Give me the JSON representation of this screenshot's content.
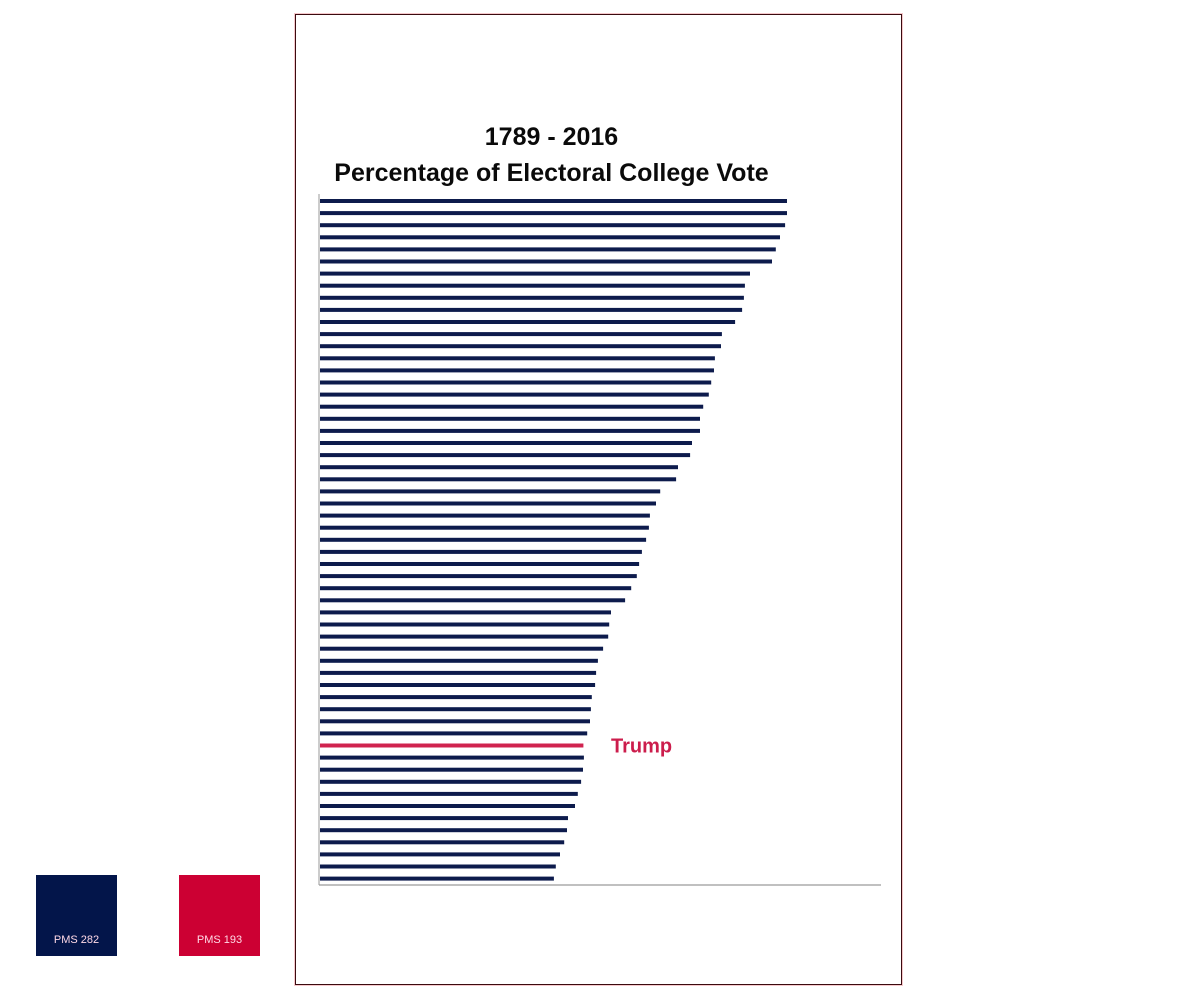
{
  "chart_data": {
    "type": "bar",
    "orientation": "horizontal",
    "title": "1789 - 2016",
    "subtitle": "Percentage of Electoral College Vote",
    "xlabel": "",
    "ylabel": "",
    "xlim": [
      0,
      100
    ],
    "grid": false,
    "legend": "none",
    "sort": "descending",
    "values": [
      100.0,
      100.0,
      99.6,
      98.5,
      97.6,
      96.8,
      92.1,
      91.0,
      90.8,
      90.4,
      88.9,
      86.1,
      85.9,
      84.6,
      84.4,
      83.8,
      83.3,
      82.1,
      81.4,
      81.4,
      79.7,
      79.3,
      76.7,
      76.3,
      72.9,
      72.0,
      70.7,
      70.5,
      69.9,
      69.0,
      68.4,
      67.9,
      66.7,
      65.4,
      62.4,
      62.0,
      61.8,
      60.7,
      59.6,
      59.2,
      59.0,
      58.3,
      58.1,
      57.9,
      57.3,
      56.5,
      56.6,
      56.4,
      56.0,
      55.3,
      54.7,
      53.2,
      53.0,
      52.4,
      51.5,
      50.6,
      50.2
    ],
    "highlight": {
      "index": 45,
      "label": "Trump",
      "value": 56.5
    },
    "colors": {
      "bar": "#0d1b4c",
      "highlight": "#d0234f",
      "highlight_label": "#cc1d4c",
      "axis": "#9a9a9a"
    }
  },
  "swatches": [
    {
      "label": "PMS 282",
      "color": "#03154a"
    },
    {
      "label": "PMS 193",
      "color": "#cc0033"
    }
  ]
}
